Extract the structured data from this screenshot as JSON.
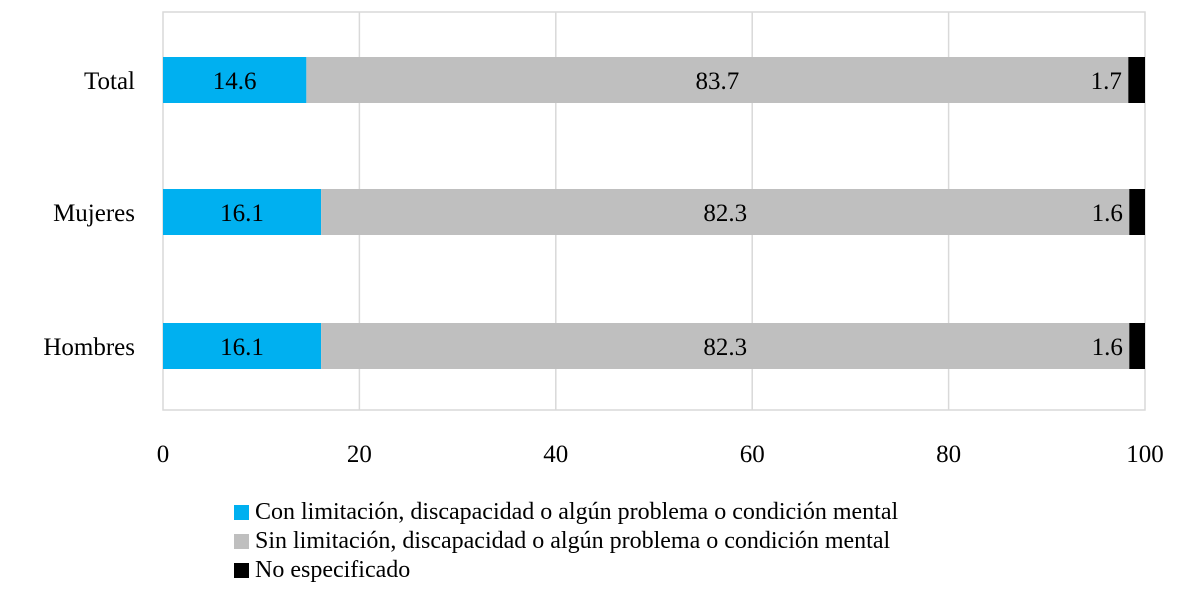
{
  "chart_data": {
    "type": "bar",
    "orientation": "horizontal",
    "stacked": true,
    "title": "",
    "xlabel": "%",
    "ylabel": "",
    "xlim": [
      0,
      100
    ],
    "xticks": [
      "0",
      "20",
      "40",
      "60",
      "80",
      "100"
    ],
    "categories": [
      "Total",
      "Mujeres",
      "Hombres"
    ],
    "series": [
      {
        "name": "Con limitación, discapacidad o algún problema o condición mental",
        "values": [
          14.6,
          16.1,
          16.1
        ],
        "labels": [
          "14.6",
          "16.1",
          "16.1"
        ],
        "color": "#00B0F0"
      },
      {
        "name": "Sin limitación, discapacidad o algún problema o condición mental",
        "values": [
          83.7,
          82.3,
          82.3
        ],
        "labels": [
          "83.7",
          "82.3",
          "82.3"
        ],
        "color": "#BFBFBF"
      },
      {
        "name": "No especificado",
        "values": [
          1.7,
          1.6,
          1.6
        ],
        "labels": [
          "1.7",
          "1.6",
          "1.6"
        ],
        "color": "#000000"
      }
    ],
    "grid": true,
    "legend_position": "bottom"
  }
}
